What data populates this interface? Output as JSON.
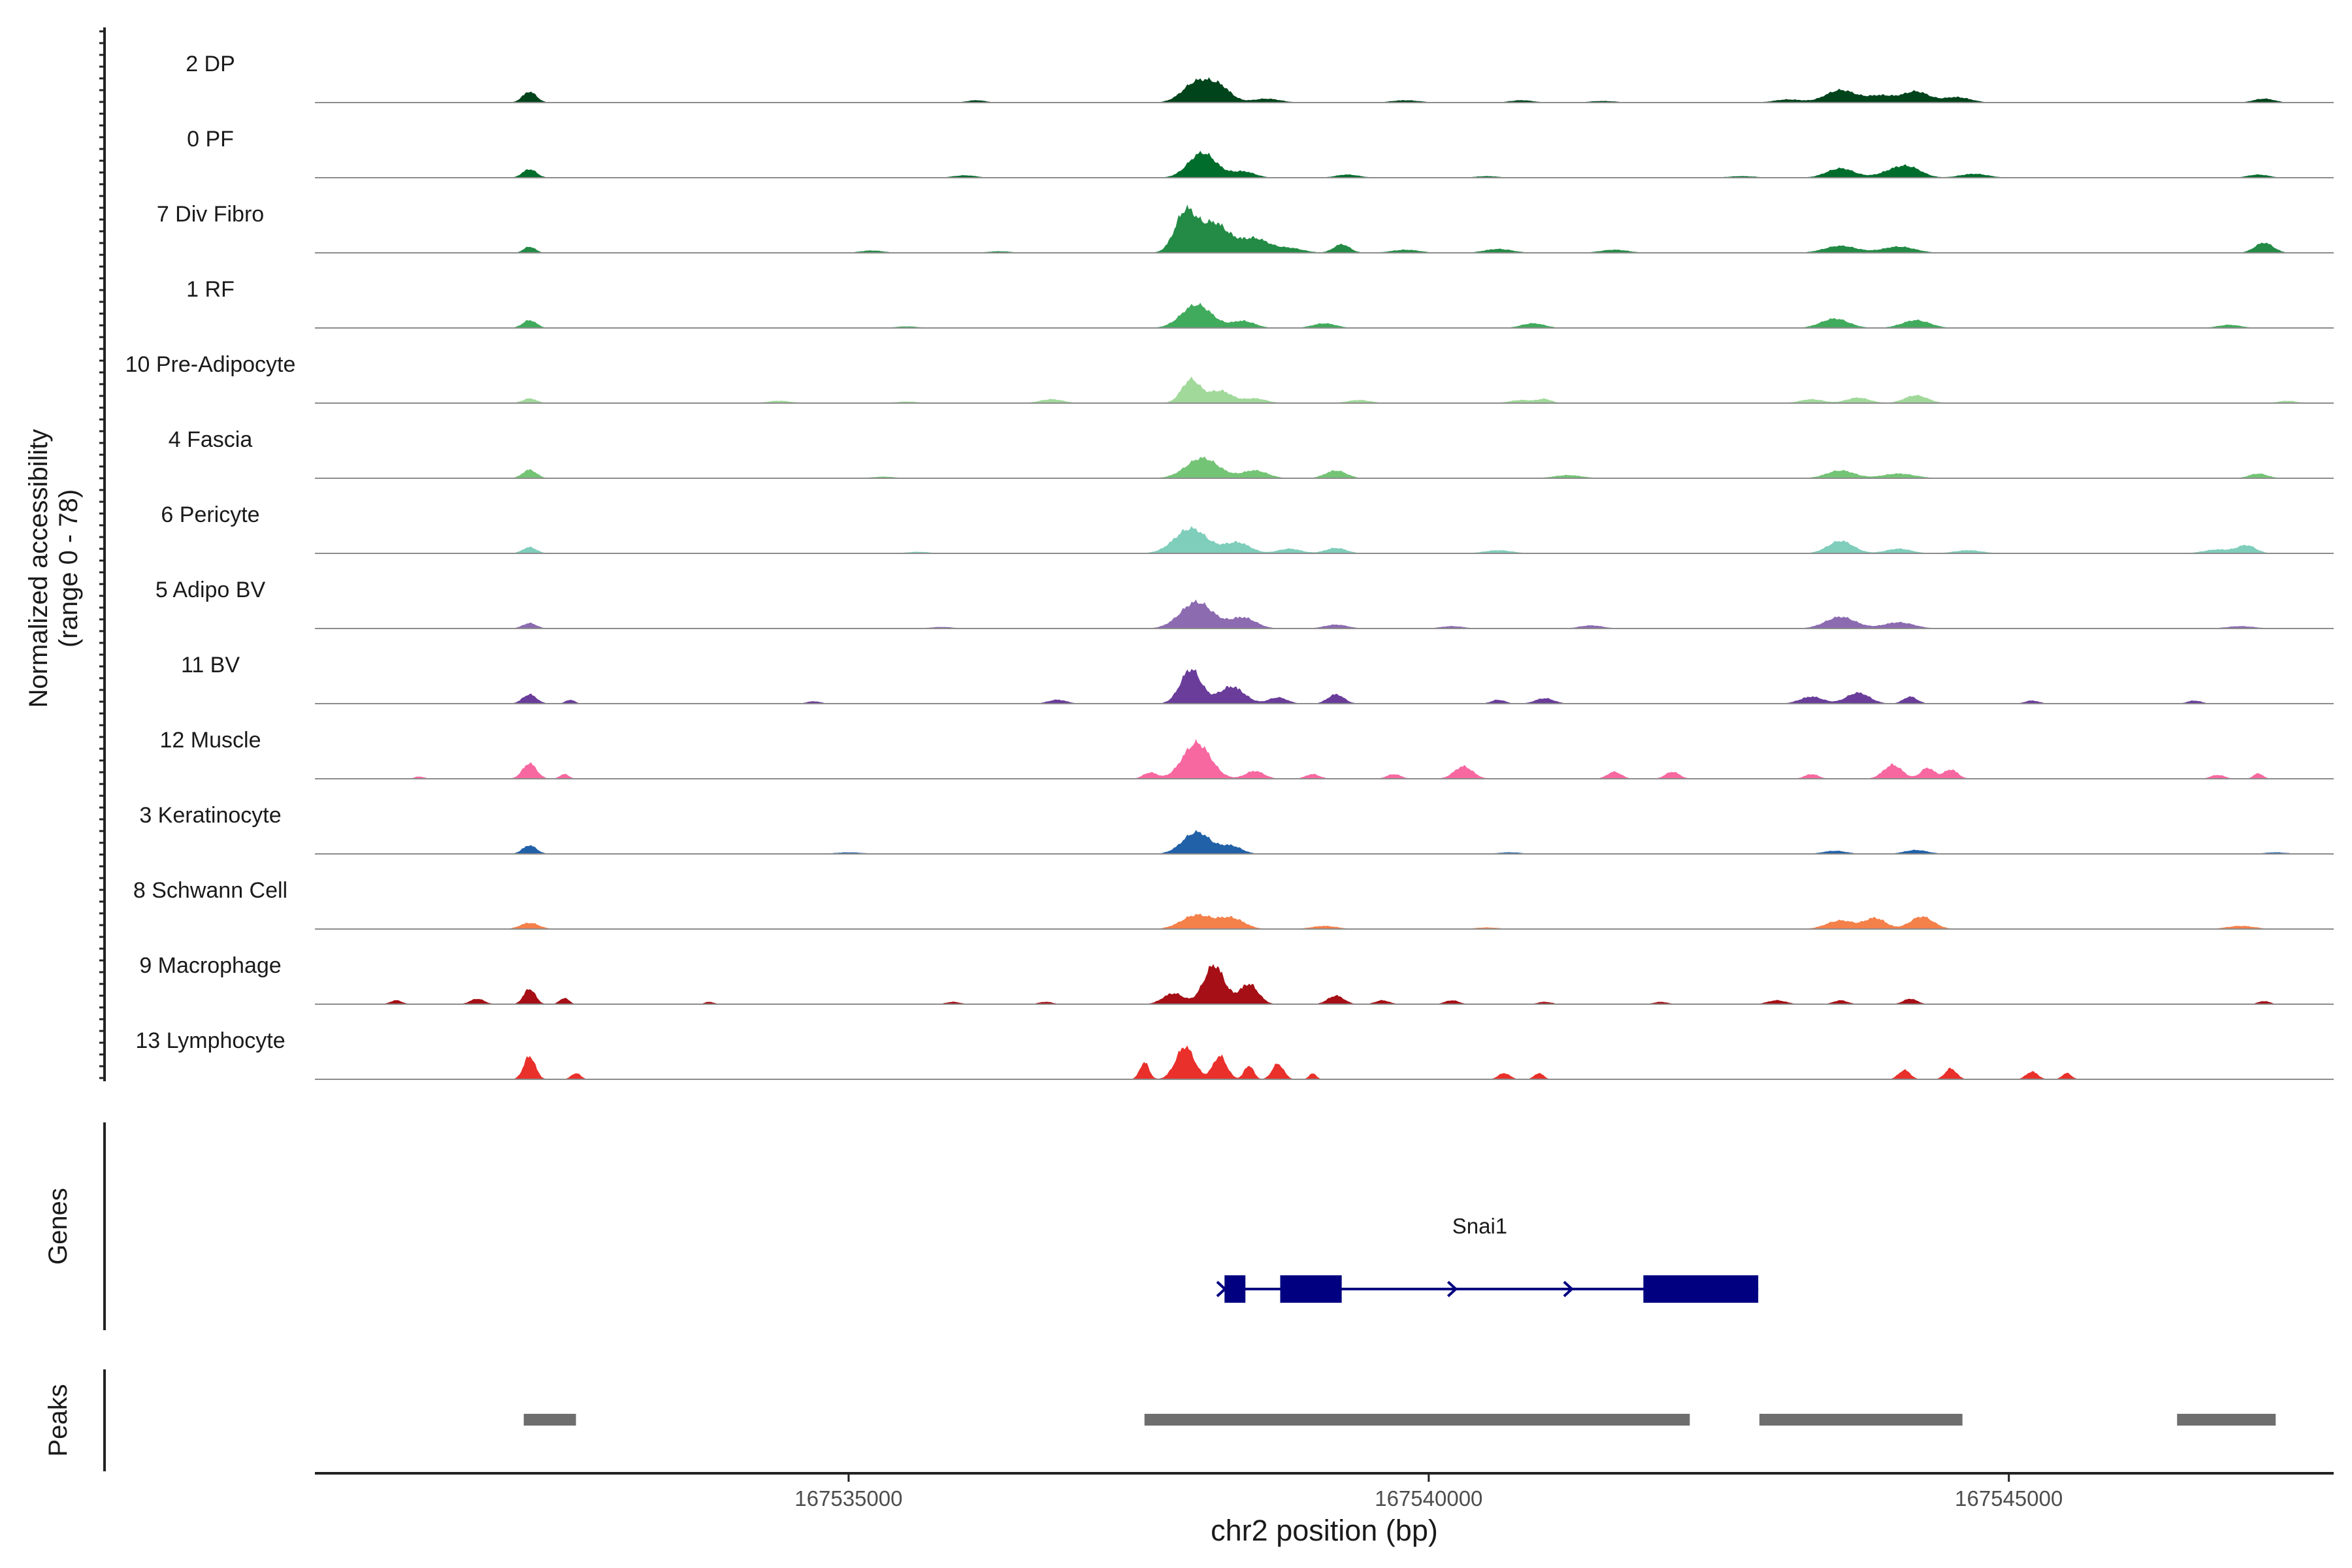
{
  "chart_data": {
    "type": "area",
    "title": "",
    "ylabel_line1": "Normalized accessibility",
    "ylabel_line2": "(range 0 - 78)",
    "y_range": [
      0,
      78
    ],
    "xlabel": "chr2 position (bp)",
    "x_range": [
      167530400,
      167547800
    ],
    "x_ticks": [
      {
        "value": 167535000,
        "label": "167535000"
      },
      {
        "value": 167540000,
        "label": "167540000"
      },
      {
        "value": 167545000,
        "label": "167545000"
      }
    ],
    "series": [
      {
        "name": "2 DP",
        "color": "#00441b",
        "peaks": [
          [
            167532250,
            14,
            60
          ],
          [
            167538000,
            26,
            120
          ],
          [
            167538200,
            18,
            100
          ],
          [
            167538600,
            5,
            120
          ],
          [
            167539800,
            3,
            120
          ],
          [
            167540800,
            3,
            100
          ],
          [
            167541500,
            2,
            120
          ],
          [
            167543100,
            4,
            120
          ],
          [
            167543550,
            16,
            130
          ],
          [
            167543900,
            9,
            120
          ],
          [
            167544200,
            14,
            110
          ],
          [
            167544550,
            7,
            120
          ],
          [
            167547200,
            5,
            90
          ],
          [
            167536100,
            3,
            80
          ]
        ]
      },
      {
        "name": "0 PF",
        "color": "#006d2c",
        "peaks": [
          [
            167532250,
            11,
            60
          ],
          [
            167538050,
            32,
            120
          ],
          [
            167538400,
            8,
            100
          ],
          [
            167539300,
            4,
            100
          ],
          [
            167542700,
            2,
            120
          ],
          [
            167543550,
            12,
            120
          ],
          [
            167544000,
            8,
            120
          ],
          [
            167544150,
            11,
            110
          ],
          [
            167544700,
            5,
            120
          ],
          [
            167547150,
            4,
            90
          ],
          [
            167536000,
            3,
            100
          ],
          [
            167540500,
            2,
            100
          ]
        ]
      },
      {
        "name": "7 Div Fibro",
        "color": "#238b45",
        "peaks": [
          [
            167532250,
            8,
            50
          ],
          [
            167537900,
            50,
            90
          ],
          [
            167538150,
            38,
            130
          ],
          [
            167538500,
            18,
            120
          ],
          [
            167538800,
            6,
            120
          ],
          [
            167539250,
            11,
            70
          ],
          [
            167539800,
            4,
            120
          ],
          [
            167540600,
            5,
            120
          ],
          [
            167541600,
            4,
            120
          ],
          [
            167543550,
            9,
            140
          ],
          [
            167544050,
            8,
            140
          ],
          [
            167547200,
            13,
            80
          ],
          [
            167535200,
            3,
            100
          ],
          [
            167536300,
            2,
            100
          ]
        ]
      },
      {
        "name": "1 RF",
        "color": "#41ab5d",
        "peaks": [
          [
            167532250,
            10,
            60
          ],
          [
            167538000,
            30,
            130
          ],
          [
            167538400,
            9,
            100
          ],
          [
            167539100,
            6,
            100
          ],
          [
            167540900,
            6,
            100
          ],
          [
            167543500,
            12,
            120
          ],
          [
            167544200,
            10,
            120
          ],
          [
            167546900,
            4,
            100
          ],
          [
            167535500,
            2,
            100
          ]
        ]
      },
      {
        "name": "10 Pre-Adipocyte",
        "color": "#a1d99b",
        "peaks": [
          [
            167532250,
            6,
            60
          ],
          [
            167537950,
            30,
            80
          ],
          [
            167538200,
            16,
            100
          ],
          [
            167538500,
            6,
            100
          ],
          [
            167536750,
            5,
            100
          ],
          [
            167539400,
            4,
            100
          ],
          [
            167540800,
            4,
            100
          ],
          [
            167541000,
            5,
            60
          ],
          [
            167543300,
            5,
            100
          ],
          [
            167543700,
            7,
            100
          ],
          [
            167544200,
            10,
            100
          ],
          [
            167547400,
            3,
            80
          ],
          [
            167534400,
            3,
            100
          ],
          [
            167535500,
            2,
            100
          ]
        ]
      },
      {
        "name": "4 Fascia",
        "color": "#74c476",
        "peaks": [
          [
            167532250,
            11,
            60
          ],
          [
            167538050,
            26,
            140
          ],
          [
            167538500,
            10,
            110
          ],
          [
            167539200,
            10,
            90
          ],
          [
            167541200,
            4,
            120
          ],
          [
            167543550,
            10,
            120
          ],
          [
            167544050,
            6,
            140
          ],
          [
            167547150,
            6,
            80
          ],
          [
            167535300,
            2,
            100
          ]
        ]
      },
      {
        "name": "6 Pericyte",
        "color": "#7fcdbb",
        "peaks": [
          [
            167532250,
            8,
            60
          ],
          [
            167537950,
            32,
            140
          ],
          [
            167538350,
            14,
            110
          ],
          [
            167538800,
            6,
            100
          ],
          [
            167539200,
            7,
            90
          ],
          [
            167540600,
            4,
            120
          ],
          [
            167543550,
            16,
            110
          ],
          [
            167544050,
            6,
            110
          ],
          [
            167544650,
            4,
            120
          ],
          [
            167546800,
            5,
            120
          ],
          [
            167547050,
            10,
            80
          ],
          [
            167535600,
            2,
            100
          ]
        ]
      },
      {
        "name": "5 Adipo BV",
        "color": "#8c6bb1",
        "peaks": [
          [
            167532250,
            7,
            60
          ],
          [
            167538000,
            34,
            140
          ],
          [
            167538400,
            14,
            110
          ],
          [
            167539200,
            5,
            100
          ],
          [
            167540200,
            3,
            100
          ],
          [
            167541400,
            4,
            100
          ],
          [
            167543550,
            15,
            130
          ],
          [
            167544050,
            8,
            130
          ],
          [
            167547000,
            3,
            120
          ],
          [
            167535800,
            2,
            100
          ]
        ]
      },
      {
        "name": "11 BV",
        "color": "#6a3d9a",
        "peaks": [
          [
            167532250,
            12,
            60
          ],
          [
            167532600,
            5,
            40
          ],
          [
            167537950,
            44,
            90
          ],
          [
            167538300,
            22,
            110
          ],
          [
            167538700,
            8,
            80
          ],
          [
            167539200,
            12,
            70
          ],
          [
            167536800,
            5,
            80
          ],
          [
            167540600,
            5,
            60
          ],
          [
            167541000,
            7,
            80
          ],
          [
            167543300,
            9,
            100
          ],
          [
            167543700,
            14,
            100
          ],
          [
            167544150,
            9,
            60
          ],
          [
            167545200,
            4,
            60
          ],
          [
            167546600,
            4,
            60
          ],
          [
            167534700,
            3,
            60
          ]
        ]
      },
      {
        "name": "12 Muscle",
        "color": "#f768a1",
        "peaks": [
          [
            167532250,
            20,
            60
          ],
          [
            167532550,
            6,
            40
          ],
          [
            167538000,
            46,
            120
          ],
          [
            167537600,
            8,
            60
          ],
          [
            167538500,
            10,
            80
          ],
          [
            167539000,
            6,
            60
          ],
          [
            167539700,
            6,
            60
          ],
          [
            167540300,
            16,
            80
          ],
          [
            167541600,
            9,
            60
          ],
          [
            167542100,
            9,
            60
          ],
          [
            167543300,
            6,
            60
          ],
          [
            167544000,
            18,
            80
          ],
          [
            167544300,
            14,
            60
          ],
          [
            167544500,
            12,
            60
          ],
          [
            167546800,
            5,
            60
          ],
          [
            167547150,
            7,
            40
          ],
          [
            167531300,
            3,
            40
          ]
        ]
      },
      {
        "name": "3 Keratinocyte",
        "color": "#2161a8",
        "peaks": [
          [
            167532250,
            11,
            60
          ],
          [
            167538000,
            28,
            120
          ],
          [
            167538300,
            10,
            90
          ],
          [
            167540700,
            2,
            100
          ],
          [
            167543500,
            4,
            100
          ],
          [
            167544200,
            5,
            100
          ],
          [
            167547300,
            2,
            100
          ],
          [
            167535000,
            2,
            120
          ]
        ]
      },
      {
        "name": "8 Schwann Cell",
        "color": "#f4804a",
        "peaks": [
          [
            167532250,
            8,
            80
          ],
          [
            167538000,
            18,
            130
          ],
          [
            167538300,
            14,
            110
          ],
          [
            167539100,
            4,
            110
          ],
          [
            167543550,
            11,
            120
          ],
          [
            167543850,
            14,
            90
          ],
          [
            167544250,
            16,
            100
          ],
          [
            167547000,
            4,
            120
          ],
          [
            167540500,
            2,
            100
          ]
        ]
      },
      {
        "name": "9 Macrophage",
        "color": "#a50f15",
        "peaks": [
          [
            167531100,
            5,
            50
          ],
          [
            167531800,
            7,
            60
          ],
          [
            167532250,
            20,
            50
          ],
          [
            167532550,
            8,
            40
          ],
          [
            167537800,
            14,
            90
          ],
          [
            167538150,
            50,
            90
          ],
          [
            167538450,
            26,
            80
          ],
          [
            167539200,
            11,
            70
          ],
          [
            167539600,
            5,
            60
          ],
          [
            167540200,
            5,
            60
          ],
          [
            167541000,
            3,
            60
          ],
          [
            167542000,
            3,
            60
          ],
          [
            167543000,
            5,
            80
          ],
          [
            167543550,
            5,
            60
          ],
          [
            167544150,
            7,
            60
          ],
          [
            167547200,
            4,
            50
          ],
          [
            167533800,
            3,
            40
          ],
          [
            167535900,
            3,
            60
          ],
          [
            167536700,
            3,
            60
          ]
        ]
      },
      {
        "name": "13 Lymphocyte",
        "color": "#e9302b",
        "peaks": [
          [
            167532250,
            30,
            50
          ],
          [
            167532650,
            8,
            40
          ],
          [
            167537550,
            22,
            40
          ],
          [
            167537900,
            42,
            80
          ],
          [
            167538200,
            30,
            60
          ],
          [
            167538450,
            18,
            40
          ],
          [
            167538700,
            20,
            50
          ],
          [
            167539000,
            8,
            30
          ],
          [
            167540650,
            8,
            50
          ],
          [
            167540950,
            8,
            40
          ],
          [
            167544100,
            12,
            50
          ],
          [
            167544500,
            14,
            50
          ],
          [
            167545200,
            10,
            50
          ],
          [
            167545500,
            8,
            40
          ]
        ]
      }
    ],
    "genes_track": {
      "label": "Genes",
      "gene": {
        "name": "Snai1",
        "color": "#000080",
        "strand": "+",
        "start": 167538240,
        "end": 167542840,
        "exons": [
          [
            167538240,
            167538420
          ],
          [
            167538720,
            167539250
          ],
          [
            167541850,
            167542840
          ]
        ]
      }
    },
    "peaks_track": {
      "label": "Peaks",
      "color": "#6e6e6e",
      "intervals": [
        [
          167532200,
          167532650
        ],
        [
          167537550,
          167542250
        ],
        [
          167542850,
          167544600
        ],
        [
          167546450,
          167547300
        ]
      ]
    }
  }
}
